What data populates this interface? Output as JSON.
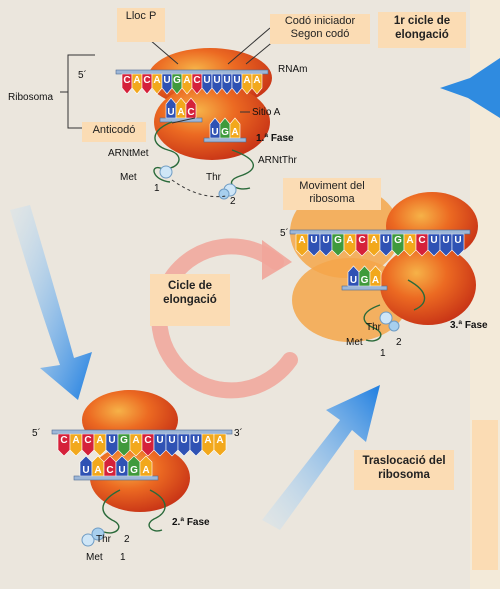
{
  "labels": {
    "lloc_p": "Lloc P",
    "codo_iniciador": "Codó iniciador",
    "segon_codo": "Segon codó",
    "cicle1": "1r cicle de elongació",
    "anticodo": "Anticodó",
    "moviment": "Moviment del ribosoma",
    "cicle": "Cicle de elongació",
    "translocacio": "Traslocació del ribosoma"
  },
  "text": {
    "ribosoma": "Ribosoma",
    "rnam": "RNAm",
    "sitio_a": "Sitio A",
    "fase1": "1.ª Fase",
    "fase2": "2.ª Fase",
    "fase3": "3.ª Fase",
    "arnt_met": "ARNtMet",
    "arnt_thr": "ARNtThr",
    "met": "Met",
    "thr": "Thr",
    "n1": "1",
    "n2": "2",
    "five_prime": "5´",
    "three_prime": "3´"
  },
  "mrna_seq": "CACAUGACUUUUAA",
  "mrna_seq3": "AUUGACAUGACUUU",
  "anticodon1": "UAC",
  "anticodon2": "UGA",
  "colors": {
    "ribosome": "#e24a1f",
    "ribosome_light": "#f5a23a",
    "A": "#f2a81c",
    "U": "#2f52b4",
    "G": "#3f9a3c",
    "C": "#d5213a",
    "arrow_blue": "#2f8be0",
    "label_bg": "#fbdcb4",
    "cycle": "#e95a4a"
  }
}
